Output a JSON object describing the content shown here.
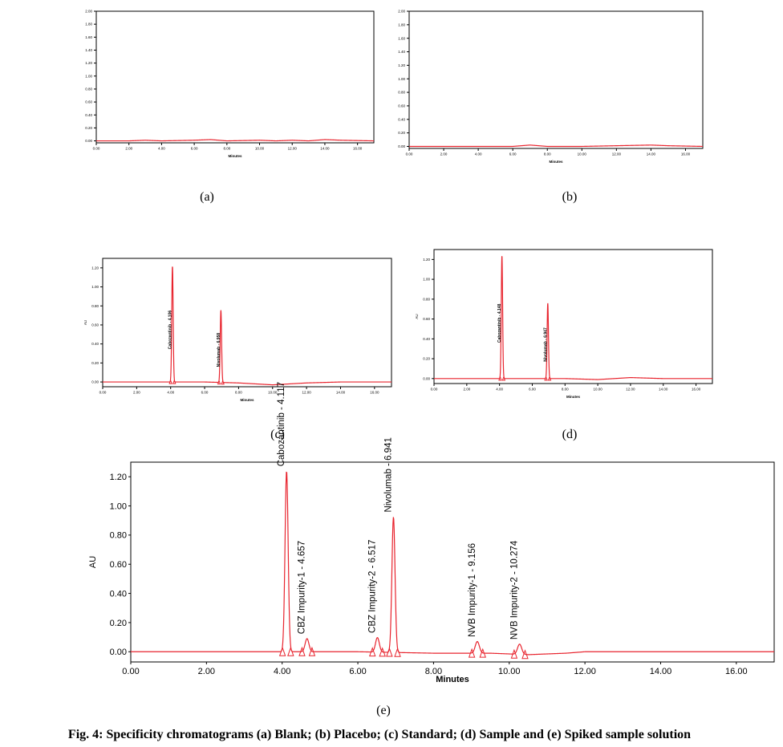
{
  "caption": "Fig. 4: Specificity chromatograms (a) Blank; (b) Placebo; (c) Standard; (d) Sample and (e) Spiked sample solution",
  "colors": {
    "trace": "#e8242e",
    "axis": "#000000"
  },
  "chart_data": [
    {
      "id": "a",
      "type": "line",
      "panel_label": "(a)",
      "xlabel": "Minutes",
      "ylabel": "",
      "xlim": [
        0,
        17
      ],
      "ylim": [
        -0.03,
        2.0
      ],
      "xticks": [
        "0.00",
        "2.00",
        "4.00",
        "6.00",
        "8.00",
        "10.00",
        "12.00",
        "14.00",
        "16.00"
      ],
      "yticks": [
        "0.00",
        "0.20",
        "0.40",
        "0.60",
        "0.80",
        "1.00",
        "1.20",
        "1.40",
        "1.60",
        "1.80",
        "2.00"
      ],
      "baseline": [
        [
          0,
          0.0
        ],
        [
          2,
          0.0
        ],
        [
          3,
          0.01
        ],
        [
          4,
          0.0
        ],
        [
          6,
          0.01
        ],
        [
          7,
          0.02
        ],
        [
          8,
          0.0
        ],
        [
          10,
          0.01
        ],
        [
          11,
          0.0
        ],
        [
          12,
          0.01
        ],
        [
          13,
          0.0
        ],
        [
          14,
          0.02
        ],
        [
          15,
          0.01
        ],
        [
          17,
          0.0
        ]
      ],
      "peaks": []
    },
    {
      "id": "b",
      "type": "line",
      "panel_label": "(b)",
      "xlabel": "Minutes",
      "ylabel": "",
      "xlim": [
        0,
        17
      ],
      "ylim": [
        -0.03,
        2.0
      ],
      "xticks": [
        "0.00",
        "2.00",
        "4.00",
        "6.00",
        "8.00",
        "10.00",
        "12.00",
        "14.00",
        "16.00"
      ],
      "yticks": [
        "0.00",
        "0.20",
        "0.40",
        "0.60",
        "0.80",
        "1.00",
        "1.20",
        "1.40",
        "1.60",
        "1.80",
        "2.00"
      ],
      "baseline": [
        [
          0,
          0.0
        ],
        [
          4,
          0.0
        ],
        [
          6,
          0.0
        ],
        [
          7,
          0.02
        ],
        [
          8,
          0.0
        ],
        [
          10,
          0.0
        ],
        [
          12,
          0.01
        ],
        [
          14,
          0.02
        ],
        [
          15,
          0.01
        ],
        [
          17,
          0.0
        ]
      ],
      "peaks": []
    },
    {
      "id": "c",
      "type": "line",
      "panel_label": "(c)",
      "xlabel": "Minutes",
      "ylabel": "AU",
      "xlim": [
        0,
        17
      ],
      "ylim": [
        -0.05,
        1.3
      ],
      "xticks": [
        "0.00",
        "2.00",
        "4.00",
        "6.00",
        "8.00",
        "10.00",
        "12.00",
        "14.00",
        "16.00"
      ],
      "yticks": [
        "0.00",
        "0.20",
        "0.40",
        "0.60",
        "0.80",
        "1.00",
        "1.20"
      ],
      "baseline": [
        [
          0,
          0.0
        ],
        [
          3,
          0.0
        ],
        [
          6,
          0.0
        ],
        [
          8,
          -0.01
        ],
        [
          10,
          -0.03
        ],
        [
          12,
          -0.01
        ],
        [
          14,
          0.0
        ],
        [
          17,
          0.0
        ]
      ],
      "peaks": [
        {
          "label": "Cabozantinib - 4.106",
          "rt": 4.106,
          "height": 1.22,
          "width": 0.09
        },
        {
          "label": "Nivolumab - 6.958",
          "rt": 6.958,
          "height": 0.76,
          "width": 0.09
        }
      ]
    },
    {
      "id": "d",
      "type": "line",
      "panel_label": "(d)",
      "xlabel": "Minutes",
      "ylabel": "AU",
      "xlim": [
        0,
        17
      ],
      "ylim": [
        -0.05,
        1.3
      ],
      "xticks": [
        "0.00",
        "2.00",
        "4.00",
        "6.00",
        "8.00",
        "10.00",
        "12.00",
        "14.00",
        "16.00"
      ],
      "yticks": [
        "0.00",
        "0.20",
        "0.40",
        "0.60",
        "0.80",
        "1.00",
        "1.20"
      ],
      "baseline": [
        [
          0,
          0.0
        ],
        [
          3,
          0.0
        ],
        [
          6,
          0.0
        ],
        [
          8,
          0.0
        ],
        [
          10,
          -0.01
        ],
        [
          12,
          0.01
        ],
        [
          14,
          0.0
        ],
        [
          17,
          0.0
        ]
      ],
      "peaks": [
        {
          "label": "Cabozantinib - 4.148",
          "rt": 4.148,
          "height": 1.24,
          "width": 0.09
        },
        {
          "label": "Nivolumab - 6.947",
          "rt": 6.947,
          "height": 0.76,
          "width": 0.09
        }
      ]
    },
    {
      "id": "e",
      "type": "line",
      "panel_label": "(e)",
      "xlabel": "Minutes",
      "ylabel": "AU",
      "xlim": [
        0,
        17
      ],
      "ylim": [
        -0.07,
        1.3
      ],
      "xticks": [
        "0.00",
        "2.00",
        "4.00",
        "6.00",
        "8.00",
        "10.00",
        "12.00",
        "14.00",
        "16.00"
      ],
      "yticks": [
        "0.00",
        "0.20",
        "0.40",
        "0.60",
        "0.80",
        "1.00",
        "1.20"
      ],
      "baseline": [
        [
          0,
          0.0
        ],
        [
          3,
          0.0
        ],
        [
          6,
          0.0
        ],
        [
          8,
          -0.01
        ],
        [
          9.5,
          -0.01
        ],
        [
          10.5,
          -0.02
        ],
        [
          11.5,
          -0.01
        ],
        [
          12,
          0.0
        ],
        [
          14,
          0.0
        ],
        [
          17,
          0.0
        ]
      ],
      "peaks": [
        {
          "label": "Cabozantinib - 4.117",
          "rt": 4.117,
          "height": 1.24,
          "width": 0.09
        },
        {
          "label": "CBZ Impurity-1 - 4.657",
          "rt": 4.657,
          "height": 0.09,
          "width": 0.11
        },
        {
          "label": "CBZ Impurity-2 - 6.517",
          "rt": 6.517,
          "height": 0.1,
          "width": 0.11
        },
        {
          "label": "Nivolumab - 6.941",
          "rt": 6.941,
          "height": 0.93,
          "width": 0.09
        },
        {
          "label": "NVB Impurity-1 - 9.156",
          "rt": 9.156,
          "height": 0.08,
          "width": 0.12
        },
        {
          "label": "NVB Impurity-2 - 10.274",
          "rt": 10.274,
          "height": 0.07,
          "width": 0.12
        }
      ]
    }
  ]
}
